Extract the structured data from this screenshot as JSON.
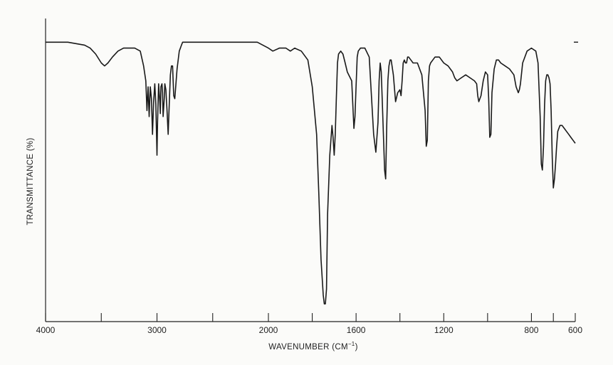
{
  "chart_data": {
    "type": "line",
    "title": "",
    "xlabel": "WAVENUMBER (CM",
    "xlabel_superscript": "−1",
    "xlabel_suffix": ")",
    "ylabel": "TRANSMITTANCE (%)",
    "grid": false,
    "legend": "none",
    "x_axis": {
      "reversed": true,
      "segments": [
        {
          "from": 4000,
          "to": 2000
        },
        {
          "from": 2000,
          "to": 600
        }
      ],
      "tick_labels": [
        {
          "value": 4000,
          "label": "4000"
        },
        {
          "value": 3000,
          "label": "3000"
        },
        {
          "value": 2000,
          "label": "2000"
        },
        {
          "value": 1600,
          "label": "1600"
        },
        {
          "value": 1200,
          "label": "1200"
        },
        {
          "value": 800,
          "label": "800"
        },
        {
          "value": 600,
          "label": "600"
        }
      ],
      "minor_ticks": [
        3500,
        2500,
        1800,
        1400,
        1000,
        700
      ]
    },
    "ylim": [
      0,
      100
    ],
    "series": [
      {
        "x": [
          4000,
          3800,
          3650,
          3600,
          3550,
          3500,
          3470,
          3440,
          3400,
          3350,
          3300,
          3250,
          3200,
          3150,
          3120,
          3100,
          3090,
          3080,
          3070,
          3060,
          3050,
          3040,
          3030,
          3020,
          3010,
          3000,
          2995,
          2985,
          2975,
          2970,
          2965,
          2955,
          2950,
          2945,
          2935,
          2930,
          2920,
          2910,
          2900,
          2890,
          2880,
          2870,
          2860,
          2850,
          2840,
          2820,
          2800,
          2780,
          2770,
          2760,
          2740,
          2720,
          2700,
          2680,
          2650,
          2600,
          2500,
          2400,
          2300,
          2200,
          2100,
          2050,
          2000,
          1980,
          1950,
          1920,
          1900,
          1880,
          1850,
          1820,
          1800,
          1780,
          1770,
          1760,
          1750,
          1745,
          1740,
          1735,
          1730,
          1720,
          1710,
          1705,
          1700,
          1695,
          1690,
          1685,
          1680,
          1670,
          1660,
          1650,
          1640,
          1620,
          1610,
          1605,
          1600,
          1595,
          1590,
          1580,
          1560,
          1540,
          1520,
          1510,
          1500,
          1495,
          1490,
          1485,
          1480,
          1470,
          1465,
          1460,
          1455,
          1450,
          1445,
          1440,
          1430,
          1420,
          1410,
          1400,
          1395,
          1390,
          1385,
          1380,
          1375,
          1370,
          1365,
          1360,
          1350,
          1340,
          1320,
          1300,
          1285,
          1280,
          1275,
          1270,
          1265,
          1260,
          1250,
          1240,
          1220,
          1200,
          1180,
          1160,
          1150,
          1140,
          1120,
          1100,
          1080,
          1060,
          1050,
          1045,
          1040,
          1030,
          1020,
          1010,
          1000,
          995,
          990,
          985,
          980,
          970,
          960,
          950,
          940,
          920,
          900,
          880,
          870,
          860,
          855,
          850,
          840,
          820,
          800,
          780,
          770,
          760,
          755,
          750,
          745,
          740,
          735,
          730,
          725,
          720,
          715,
          710,
          705,
          700,
          695,
          690,
          685,
          680,
          670,
          660,
          650,
          640,
          630,
          620,
          610,
          600
        ],
        "y": [
          93,
          93,
          92,
          91,
          89,
          86,
          85,
          86,
          88,
          90,
          91,
          91,
          91,
          90,
          85,
          80,
          70,
          78,
          68,
          78,
          74,
          62,
          73,
          79,
          72,
          55,
          66,
          79,
          73,
          69,
          78,
          79,
          76,
          68,
          74,
          79,
          77,
          70,
          62,
          72,
          82,
          85,
          85,
          75,
          74,
          84,
          90,
          92,
          93,
          93,
          93,
          93,
          93,
          93,
          93,
          93,
          93,
          93,
          93,
          93,
          93,
          92,
          91,
          90,
          91,
          91,
          90,
          91,
          90,
          87,
          78,
          62,
          42,
          20,
          8,
          5,
          5,
          10,
          35,
          55,
          65,
          61,
          55,
          62,
          74,
          86,
          89,
          90,
          89,
          86,
          83,
          80,
          64,
          68,
          78,
          88,
          90,
          91,
          91,
          88,
          62,
          56,
          66,
          80,
          86,
          83,
          72,
          50,
          47,
          65,
          80,
          85,
          87,
          87,
          82,
          73,
          76,
          77,
          75,
          80,
          86,
          87,
          86,
          86,
          88,
          88,
          87,
          86,
          86,
          82,
          70,
          58,
          60,
          80,
          85,
          86,
          87,
          88,
          88,
          86,
          85,
          83,
          81,
          80,
          81,
          82,
          81,
          80,
          79,
          75,
          73,
          75,
          80,
          83,
          82,
          74,
          61,
          62,
          76,
          84,
          87,
          87,
          86,
          85,
          84,
          82,
          78,
          76,
          77,
          79,
          86,
          90,
          91,
          90,
          86,
          68,
          52,
          50,
          58,
          72,
          80,
          82,
          82,
          81,
          79,
          70,
          54,
          44,
          47,
          52,
          58,
          63,
          65,
          65,
          64,
          63,
          62,
          61,
          60,
          59
        ]
      }
    ],
    "right_edge_dash": 93
  }
}
